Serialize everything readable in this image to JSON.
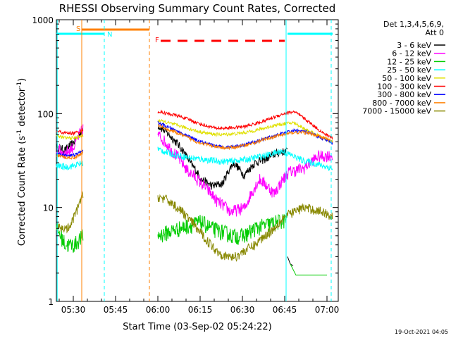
{
  "chart_data": {
    "type": "line",
    "title": "RHESSI Observing Summary Count Rates, Corrected",
    "xlabel": "Start Time (03-Sep-02 05:24:22)",
    "ylabel_main": "Corrected Count Rate (s",
    "ylabel_sup1": "-1",
    "ylabel_mid": " detector",
    "ylabel_sup2": "-1",
    "ylabel_end": ")",
    "xlim_min": [
      0,
      100
    ],
    "ylim": [
      1,
      1000
    ],
    "y_scale": "log",
    "x_ticks": [
      {
        "min": 6,
        "label": "05:30"
      },
      {
        "min": 21,
        "label": "05:45"
      },
      {
        "min": 36,
        "label": "06:00"
      },
      {
        "min": 51,
        "label": "06:15"
      },
      {
        "min": 66,
        "label": "06:30"
      },
      {
        "min": 81,
        "label": "06:45"
      },
      {
        "min": 96,
        "label": "07:00"
      }
    ],
    "y_ticks": [
      {
        "v": 1,
        "label": "1"
      },
      {
        "v": 10,
        "label": "10"
      },
      {
        "v": 100,
        "label": "100"
      },
      {
        "v": 1000,
        "label": "1000"
      }
    ],
    "legend_title1": "Det 1,3,4,5,6,9,",
    "legend_title2": "Att 0",
    "series": [
      {
        "name": "3 - 6 keV",
        "color": "#000000",
        "pre": [
          44,
          41,
          50,
          68
        ],
        "post": [
          75,
          60,
          45,
          30,
          20,
          17,
          18,
          30,
          22,
          30,
          33,
          38,
          40
        ],
        "noise": 0.1,
        "end": [
          [
            82,
            3
          ],
          [
            83,
            2.5
          ],
          [
            84,
            2.4
          ]
        ]
      },
      {
        "name": "6 - 12 keV",
        "color": "#ff00ff",
        "pre": [
          42,
          38,
          45,
          70
        ],
        "post": [
          60,
          40,
          25,
          18,
          12,
          9,
          10,
          20,
          14,
          24,
          26,
          35,
          36
        ],
        "noise": 0.15
      },
      {
        "name": "12 - 25 keV",
        "color": "#00cc00",
        "pre": [
          6,
          4,
          4,
          5
        ],
        "post": [
          5,
          5.5,
          6,
          6.5,
          7,
          6,
          5.5,
          5,
          5,
          6,
          6.5,
          7,
          7.5
        ],
        "noise": 0.2,
        "end": [
          [
            83,
            2.5
          ],
          [
            85,
            1.9
          ],
          [
            96,
            1.9
          ]
        ]
      },
      {
        "name": "25 - 50 keV",
        "color": "#00ffff",
        "pre": [
          28,
          27,
          28,
          30
        ],
        "post": [
          42,
          38,
          36,
          34,
          33,
          32,
          31,
          31,
          32,
          33,
          35,
          37,
          40,
          36,
          32,
          30,
          28,
          26
        ],
        "noise": 0.08
      },
      {
        "name": "50 - 100 keV",
        "color": "#e0e000",
        "pre": [
          58,
          55,
          55,
          58
        ],
        "post": [
          85,
          80,
          75,
          70,
          65,
          62,
          60,
          60,
          61,
          63,
          66,
          70,
          75,
          78,
          80,
          70,
          62,
          55,
          50
        ],
        "noise": 0.04
      },
      {
        "name": "100 - 300 keV",
        "color": "#ff0000",
        "pre": [
          65,
          62,
          62,
          66
        ],
        "post": [
          105,
          100,
          95,
          88,
          80,
          74,
          70,
          70,
          71,
          73,
          78,
          84,
          92,
          100,
          105,
          90,
          75,
          62,
          55
        ],
        "noise": 0.04
      },
      {
        "name": "300 - 800 keV",
        "color": "#0000ff",
        "pre": [
          38,
          36,
          36,
          40
        ],
        "post": [
          80,
          72,
          65,
          58,
          52,
          48,
          45,
          44,
          45,
          47,
          50,
          54,
          58,
          62,
          66,
          65,
          60,
          54,
          48
        ],
        "noise": 0.04
      },
      {
        "name": "800 - 7000 keV",
        "color": "#ff8000",
        "pre": [
          36,
          34,
          34,
          38
        ],
        "post": [
          75,
          68,
          62,
          56,
          50,
          47,
          44,
          43,
          44,
          46,
          49,
          53,
          57,
          60,
          63,
          63,
          60,
          56,
          50
        ],
        "noise": 0.04
      },
      {
        "name": "7000 - 15000 keV",
        "color": "#888800",
        "pre": [
          6,
          6,
          6,
          9,
          14
        ],
        "post": [
          13,
          12,
          10,
          8,
          6,
          4.5,
          3.5,
          3,
          3,
          3.5,
          4,
          5,
          6,
          8,
          9,
          10,
          9.5,
          9,
          8
        ],
        "noise": 0.12
      }
    ],
    "annotations": [
      {
        "text": "S",
        "color": "#ff8000"
      },
      {
        "text": "N",
        "color": "#00ffff"
      },
      {
        "text": "F",
        "color": "#ff0000"
      }
    ],
    "timestamp": "19-Oct-2021 04:05"
  }
}
